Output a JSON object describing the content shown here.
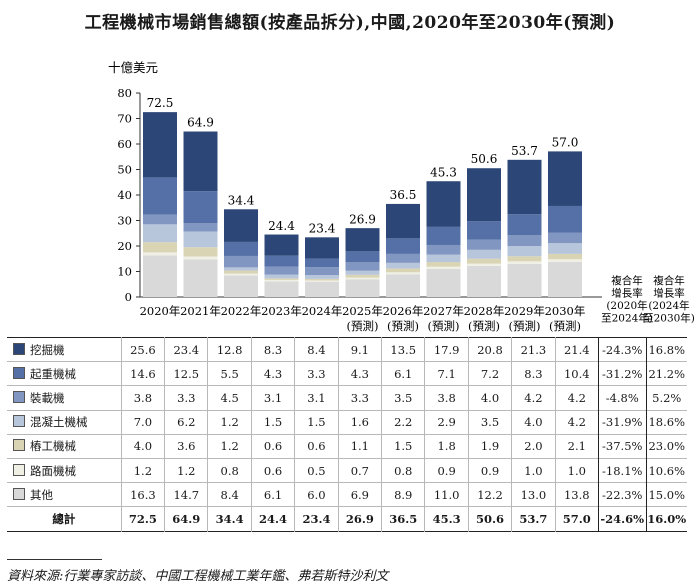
{
  "title": "工程機械市場銷售總額(按產品拆分),中國,2020年至2030年(預測)",
  "chart_data": {
    "type": "bar",
    "stacked": true,
    "ylabel": "十億美元",
    "ylim": [
      0,
      80
    ],
    "yticks": [
      0,
      10,
      20,
      30,
      40,
      50,
      60,
      70,
      80
    ],
    "grid": false,
    "categories": [
      "2020年",
      "2021年",
      "2022年",
      "2023年",
      "2024年",
      "2025年",
      "2026年",
      "2027年",
      "2028年",
      "2029年",
      "2030年"
    ],
    "category_notes": [
      "",
      "",
      "",
      "",
      "",
      "(預測)",
      "(預測)",
      "(預測)",
      "(預測)",
      "(預測)",
      "(預測)"
    ],
    "series": [
      {
        "name": "其他",
        "color": "#d9d9d9",
        "values": [
          16.3,
          14.7,
          8.4,
          6.1,
          6.0,
          6.9,
          8.9,
          11.0,
          12.2,
          13.0,
          13.8
        ],
        "cagr_2020_2024": "-22.3%",
        "cagr_2024_2030": "15.0%"
      },
      {
        "name": "路面機械",
        "color": "#efefe4",
        "values": [
          1.2,
          1.2,
          0.8,
          0.6,
          0.5,
          0.7,
          0.8,
          0.9,
          0.9,
          1.0,
          1.0
        ],
        "cagr_2020_2024": "-18.1%",
        "cagr_2024_2030": "10.6%"
      },
      {
        "name": "樁工機械",
        "color": "#d8d4b4",
        "values": [
          4.0,
          3.6,
          1.2,
          0.6,
          0.6,
          1.1,
          1.5,
          1.8,
          1.9,
          2.0,
          2.1
        ],
        "cagr_2020_2024": "-37.5%",
        "cagr_2024_2030": "23.0%"
      },
      {
        "name": "混凝土機械",
        "color": "#b8c6dc",
        "values": [
          7.0,
          6.2,
          1.2,
          1.5,
          1.5,
          1.6,
          2.2,
          2.9,
          3.5,
          4.0,
          4.2
        ],
        "cagr_2020_2024": "-31.9%",
        "cagr_2024_2030": "18.6%"
      },
      {
        "name": "裝載機",
        "color": "#8196c0",
        "values": [
          3.8,
          3.3,
          4.5,
          3.1,
          3.1,
          3.3,
          3.5,
          3.8,
          4.0,
          4.2,
          4.2
        ],
        "cagr_2020_2024": "-4.8%",
        "cagr_2024_2030": "5.2%"
      },
      {
        "name": "起重機械",
        "color": "#5470a6",
        "values": [
          14.6,
          12.5,
          5.5,
          4.3,
          3.3,
          4.3,
          6.1,
          7.1,
          7.2,
          8.3,
          10.4
        ],
        "cagr_2020_2024": "-31.2%",
        "cagr_2024_2030": "21.2%"
      },
      {
        "name": "挖掘機",
        "color": "#2c4777",
        "values": [
          25.6,
          23.4,
          12.8,
          8.3,
          8.4,
          9.1,
          13.5,
          17.9,
          20.8,
          21.3,
          21.4
        ],
        "cagr_2020_2024": "-24.3%",
        "cagr_2024_2030": "16.8%"
      }
    ],
    "totals": [
      72.5,
      64.9,
      34.4,
      24.4,
      23.4,
      26.9,
      36.5,
      45.3,
      50.6,
      53.7,
      57.0
    ],
    "cagr_headers": [
      "複合年增長率(2020年至2024年)",
      "複合年增長率(2024年至2030年)"
    ]
  },
  "table": {
    "rows": [
      {
        "label": "挖掘機",
        "values": [
          "25.6",
          "23.4",
          "12.8",
          "8.3",
          "8.4",
          "9.1",
          "13.5",
          "17.9",
          "20.8",
          "21.3",
          "21.4"
        ],
        "cagr1": "-24.3%",
        "cagr2": "16.8%"
      },
      {
        "label": "起重機械",
        "values": [
          "14.6",
          "12.5",
          "5.5",
          "4.3",
          "3.3",
          "4.3",
          "6.1",
          "7.1",
          "7.2",
          "8.3",
          "10.4"
        ],
        "cagr1": "-31.2%",
        "cagr2": "21.2%"
      },
      {
        "label": "裝載機",
        "values": [
          "3.8",
          "3.3",
          "4.5",
          "3.1",
          "3.1",
          "3.3",
          "3.5",
          "3.8",
          "4.0",
          "4.2",
          "4.2"
        ],
        "cagr1": "-4.8%",
        "cagr2": "5.2%"
      },
      {
        "label": "混凝土機械",
        "values": [
          "7.0",
          "6.2",
          "1.2",
          "1.5",
          "1.5",
          "1.6",
          "2.2",
          "2.9",
          "3.5",
          "4.0",
          "4.2"
        ],
        "cagr1": "-31.9%",
        "cagr2": "18.6%"
      },
      {
        "label": "樁工機械",
        "values": [
          "4.0",
          "3.6",
          "1.2",
          "0.6",
          "0.6",
          "1.1",
          "1.5",
          "1.8",
          "1.9",
          "2.0",
          "2.1"
        ],
        "cagr1": "-37.5%",
        "cagr2": "23.0%"
      },
      {
        "label": "路面機械",
        "values": [
          "1.2",
          "1.2",
          "0.8",
          "0.6",
          "0.5",
          "0.7",
          "0.8",
          "0.9",
          "0.9",
          "1.0",
          "1.0"
        ],
        "cagr1": "-18.1%",
        "cagr2": "10.6%"
      },
      {
        "label": "其他",
        "values": [
          "16.3",
          "14.7",
          "8.4",
          "6.1",
          "6.0",
          "6.9",
          "8.9",
          "11.0",
          "12.2",
          "13.0",
          "13.8"
        ],
        "cagr1": "-22.3%",
        "cagr2": "15.0%"
      }
    ],
    "total": {
      "label": "總計",
      "values": [
        "72.5",
        "64.9",
        "34.4",
        "24.4",
        "23.4",
        "26.9",
        "36.5",
        "45.3",
        "50.6",
        "53.7",
        "57.0"
      ],
      "cagr1": "-24.6%",
      "cagr2": "16.0%"
    }
  },
  "source": "資料來源:行業專家訪談、中國工程機械工業年鑑、弗若斯特沙利文"
}
